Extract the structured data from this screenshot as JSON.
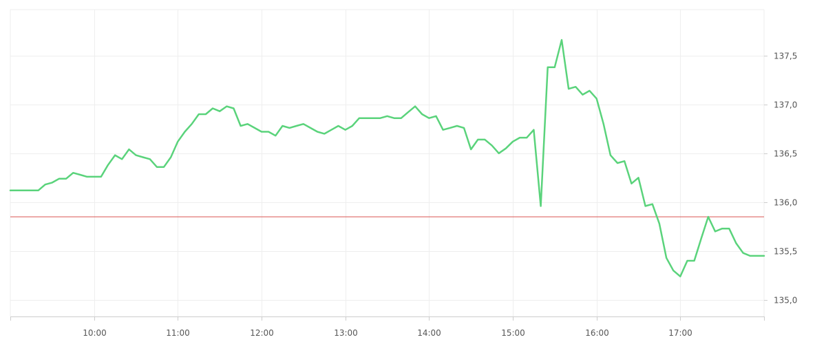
{
  "chart_data": {
    "type": "line",
    "title": "",
    "xlabel": "",
    "ylabel": "",
    "x_tick_labels": [
      "10:00",
      "11:00",
      "12:00",
      "13:00",
      "14:00",
      "15:00",
      "16:00",
      "17:00"
    ],
    "y_tick_labels": [
      "135,0",
      "135,5",
      "136,0",
      "136,5",
      "137,0",
      "137,5"
    ],
    "x_range": [
      "09:00",
      "18:00"
    ],
    "y_range": [
      134.83,
      137.97
    ],
    "grid": true,
    "y_axis_position": "right",
    "reference_line": {
      "value": 135.85,
      "color": "#d9534f"
    },
    "colors": {
      "series_line": "#5ad37b",
      "grid": "#eeeeee",
      "axis": "#cccccc"
    },
    "series": [
      {
        "x": [
          "09:00",
          "09:05",
          "09:10",
          "09:15",
          "09:20",
          "09:25",
          "09:30",
          "09:35",
          "09:40",
          "09:45",
          "09:50",
          "09:55",
          "10:00",
          "10:05",
          "10:10",
          "10:15",
          "10:20",
          "10:25",
          "10:30",
          "10:35",
          "10:40",
          "10:45",
          "10:50",
          "10:55",
          "11:00",
          "11:05",
          "11:10",
          "11:15",
          "11:20",
          "11:25",
          "11:30",
          "11:35",
          "11:40",
          "11:45",
          "11:50",
          "11:55",
          "12:00",
          "12:05",
          "12:10",
          "12:15",
          "12:20",
          "12:25",
          "12:30",
          "12:35",
          "12:40",
          "12:45",
          "12:50",
          "12:55",
          "13:00",
          "13:05",
          "13:10",
          "13:15",
          "13:20",
          "13:25",
          "13:30",
          "13:35",
          "13:40",
          "13:45",
          "13:50",
          "13:55",
          "14:00",
          "14:05",
          "14:10",
          "14:15",
          "14:20",
          "14:25",
          "14:30",
          "14:35",
          "14:40",
          "14:45",
          "14:50",
          "14:55",
          "15:00",
          "15:05",
          "15:10",
          "15:15",
          "15:20",
          "15:25",
          "15:30",
          "15:35",
          "15:40",
          "15:45",
          "15:50",
          "15:55",
          "16:00",
          "16:05",
          "16:10",
          "16:15",
          "16:20",
          "16:25",
          "16:30",
          "16:35",
          "16:40",
          "16:45",
          "16:50",
          "16:55",
          "17:00",
          "17:05",
          "17:10",
          "17:15",
          "17:20",
          "17:25",
          "17:30",
          "17:35",
          "17:40",
          "17:45",
          "17:50",
          "17:55",
          "18:00"
        ],
        "values": [
          136.12,
          136.12,
          136.12,
          136.12,
          136.12,
          136.18,
          136.2,
          136.24,
          136.24,
          136.3,
          136.28,
          136.26,
          136.26,
          136.26,
          136.38,
          136.48,
          136.44,
          136.54,
          136.48,
          136.46,
          136.44,
          136.36,
          136.36,
          136.46,
          136.62,
          136.72,
          136.8,
          136.9,
          136.9,
          136.96,
          136.93,
          136.98,
          136.96,
          136.78,
          136.8,
          136.76,
          136.72,
          136.72,
          136.68,
          136.78,
          136.76,
          136.78,
          136.8,
          136.76,
          136.72,
          136.7,
          136.74,
          136.78,
          136.74,
          136.78,
          136.86,
          136.86,
          136.86,
          136.86,
          136.88,
          136.86,
          136.86,
          136.92,
          136.98,
          136.9,
          136.86,
          136.88,
          136.74,
          136.76,
          136.78,
          136.76,
          136.54,
          136.64,
          136.64,
          136.58,
          136.5,
          136.55,
          136.62,
          136.66,
          136.66,
          136.74,
          135.96,
          137.38,
          137.38,
          137.66,
          137.16,
          137.18,
          137.1,
          137.14,
          137.06,
          136.8,
          136.48,
          136.4,
          136.42,
          136.19,
          136.25,
          135.96,
          135.98,
          135.78,
          135.43,
          135.3,
          135.24,
          135.4,
          135.4,
          135.63,
          135.85,
          135.7,
          135.73,
          135.73,
          135.58,
          135.48,
          135.45,
          135.45,
          135.45
        ]
      }
    ]
  }
}
